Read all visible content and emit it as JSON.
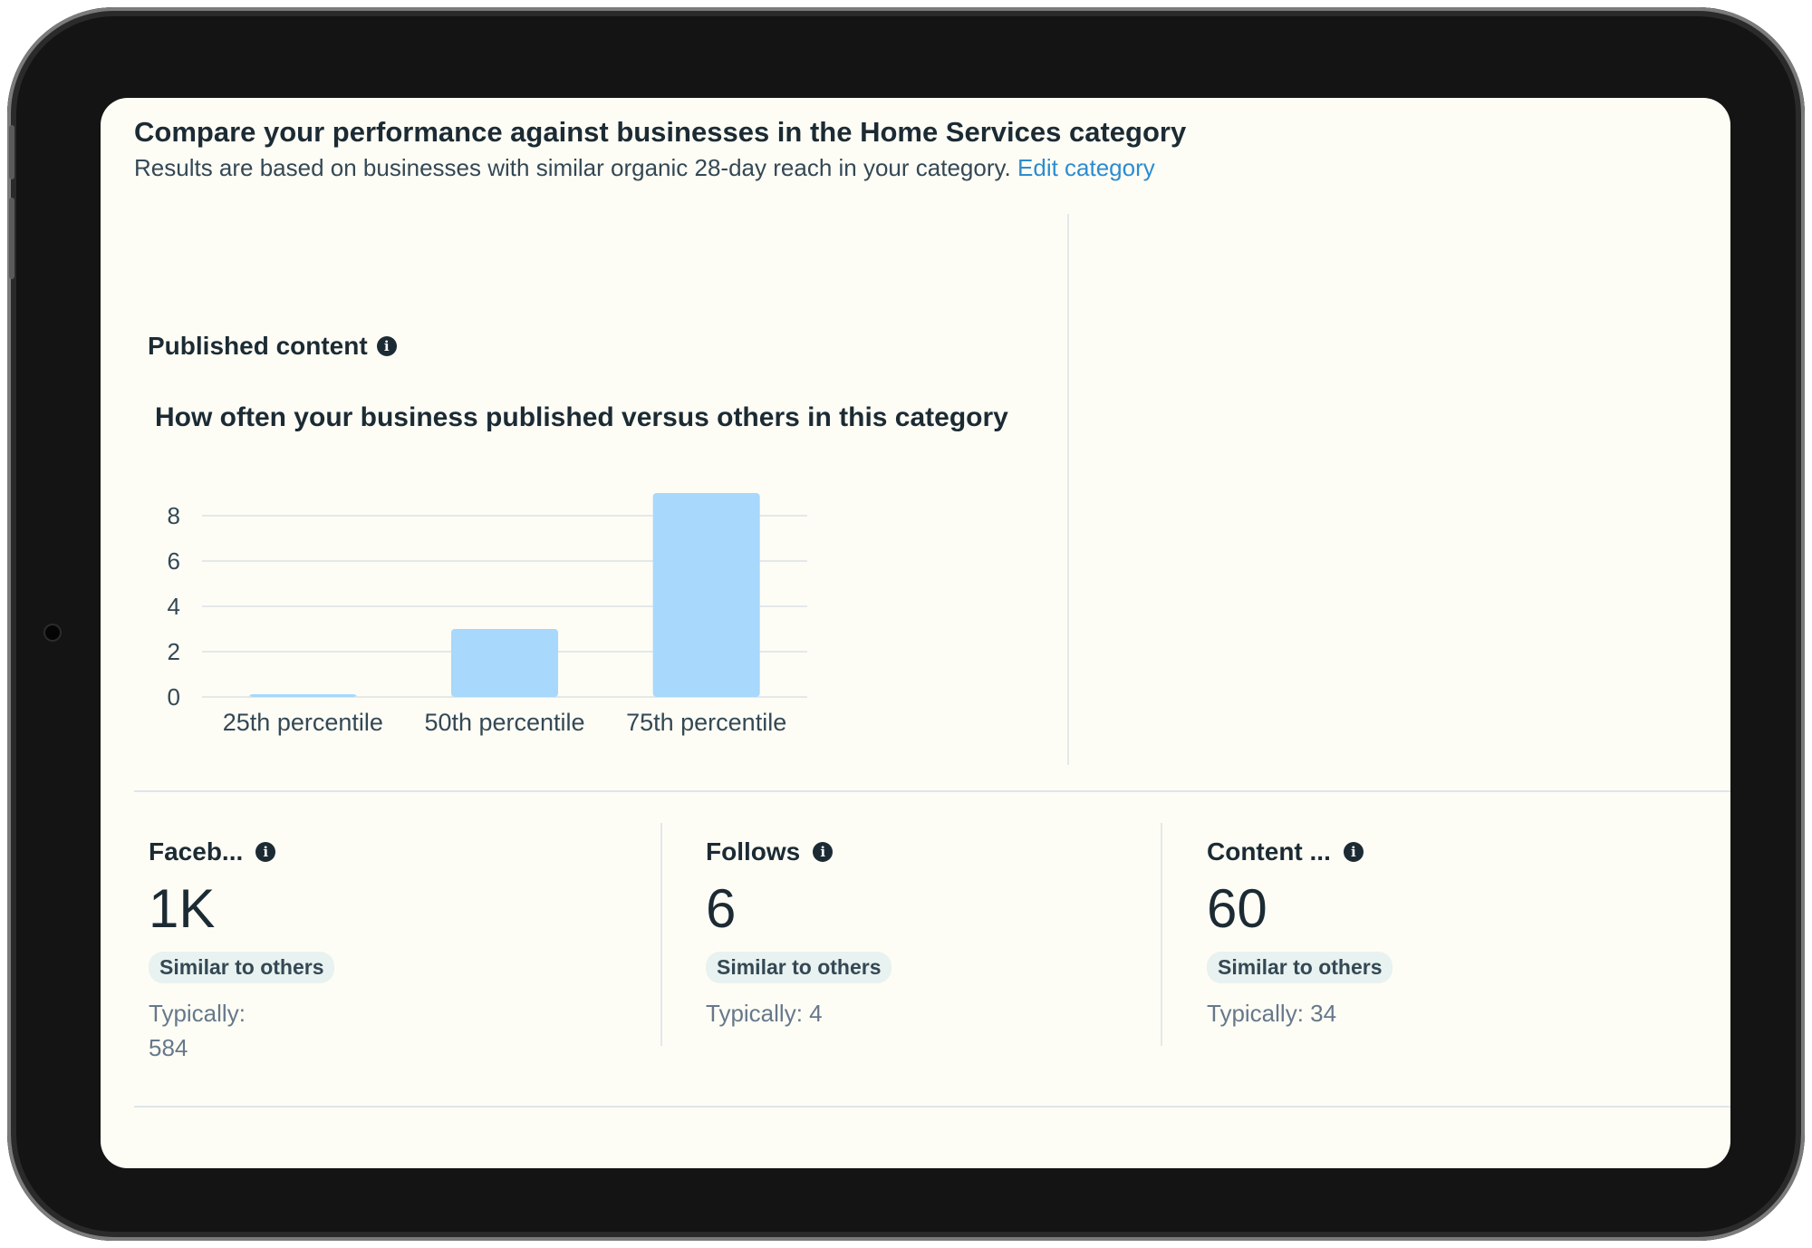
{
  "header": {
    "title": "Compare your performance against businesses in the Home Services category",
    "subtitle": "Results are based on businesses with similar organic 28-day reach in your category.",
    "edit_link": "Edit category"
  },
  "published": {
    "label": "Published content",
    "info_icon": "i"
  },
  "chart_data": {
    "type": "bar",
    "title": "How often your business published versus others in this category",
    "categories": [
      "25th percentile",
      "50th percentile",
      "75th percentile"
    ],
    "values": [
      0,
      3,
      9
    ],
    "yticks": [
      "0",
      "2",
      "4",
      "6",
      "8"
    ],
    "ylim": [
      0,
      9
    ],
    "grid": true,
    "bar_color": "#a8d8fb"
  },
  "metrics": [
    {
      "label": "Faceb...",
      "value": "1K",
      "badge": "Similar to others",
      "typical_label": "Typically:",
      "typical_value": "584"
    },
    {
      "label": "Follows",
      "value": "6",
      "badge": "Similar to others",
      "typical_label": "Typically: 4",
      "typical_value": ""
    },
    {
      "label": "Content ...",
      "value": "60",
      "badge": "Similar to others",
      "typical_label": "Typically: 34",
      "typical_value": ""
    }
  ],
  "colors": {
    "accent_link": "#2d8ccf",
    "screen_bg": "#fdfdf6",
    "device": "#141414"
  }
}
